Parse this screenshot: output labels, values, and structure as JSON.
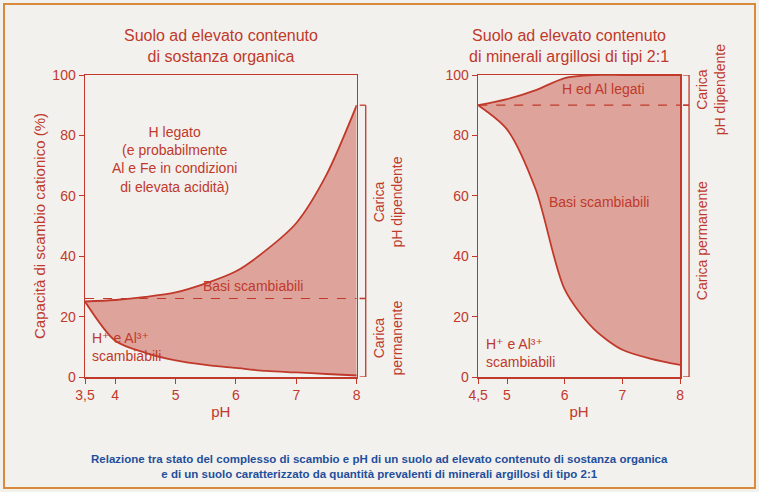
{
  "chart_data": [
    {
      "type": "area",
      "title": [
        "Suolo ad elevato contenuto",
        "di sostanza organica"
      ],
      "xlabel": "pH",
      "ylabel": "Capacità di scambio cationico (%)",
      "x": [
        3.5,
        4,
        4.5,
        5,
        5.5,
        6,
        6.5,
        7,
        7.5,
        8
      ],
      "xlim": [
        3.5,
        8
      ],
      "xticks": [
        {
          "value": 3.5,
          "label": "3,5"
        },
        4,
        5,
        6,
        7,
        8
      ],
      "ylim": [
        0,
        100
      ],
      "yticks": [
        0,
        20,
        40,
        60,
        80,
        100
      ],
      "grid": false,
      "series": [
        {
          "type": "line",
          "color": "#c0392b",
          "line_style": "solid",
          "values": [
            25,
            12,
            8,
            5.5,
            4,
            3,
            2,
            1.5,
            1,
            0.5
          ]
        },
        {
          "type": "area",
          "color": "#c0392b",
          "line_style": "solid",
          "values": [
            25,
            25.5,
            26.5,
            28,
            31,
            35,
            42,
            51,
            67,
            90
          ]
        },
        {
          "type": "line",
          "color": "#c0392b",
          "line_style": "dashed",
          "values": [
            26,
            26,
            26,
            26,
            26,
            26,
            26,
            26,
            26,
            26
          ]
        }
      ],
      "annotations": [
        {
          "text": [
            "H legato",
            "(e probabilmente",
            "Al e Fe in condizioni",
            "di elevata acidità)"
          ]
        },
        {
          "text": [
            "Basi scambiabili"
          ]
        },
        {
          "text": [
            "H⁺ e Al³⁺",
            "scambiabili"
          ]
        }
      ],
      "brackets": [
        {
          "text": [
            "Carica",
            "pH dipendente"
          ],
          "from": 26,
          "to": 90
        },
        {
          "text": [
            "Carica",
            "permanente"
          ],
          "from": 0,
          "to": 26
        }
      ]
    },
    {
      "type": "area",
      "title": [
        "Suolo ad elevato contenuto",
        "di minerali argillosi di tipi 2:1"
      ],
      "xlabel": "pH",
      "x": [
        4.5,
        5,
        5.5,
        6,
        6.5,
        7,
        7.5,
        8
      ],
      "xlim": [
        4.5,
        8
      ],
      "xticks": [
        {
          "value": 4.5,
          "label": "4,5"
        },
        5,
        6,
        7,
        8
      ],
      "ylim": [
        0,
        100
      ],
      "yticks": [
        0,
        20,
        40,
        60,
        80,
        100
      ],
      "grid": false,
      "series": [
        {
          "type": "line",
          "color": "#c0392b",
          "line_style": "solid",
          "values": [
            90,
            82,
            62,
            29,
            16,
            9,
            6,
            4
          ]
        },
        {
          "type": "area",
          "color": "#c0392b",
          "line_style": "solid",
          "values": [
            90,
            92,
            95,
            99,
            100,
            100,
            100,
            100
          ]
        },
        {
          "type": "line",
          "color": "#c0392b",
          "line_style": "dashed",
          "values": [
            90,
            90,
            90,
            90,
            90,
            90,
            90,
            90
          ]
        }
      ],
      "annotations": [
        {
          "text": [
            "H ed Al legati"
          ]
        },
        {
          "text": [
            "Basi scambiabili"
          ]
        },
        {
          "text": [
            "H⁺ e Al³⁺",
            "scambiabili"
          ]
        }
      ],
      "brackets": [
        {
          "text": [
            "Carica",
            "pH dipendente"
          ],
          "from": 90,
          "to": 100
        },
        {
          "text": [
            "Carica permanente"
          ],
          "from": 0,
          "to": 90
        }
      ]
    }
  ],
  "caption": [
    "Relazione tra stato del complesso di scambio e pH di un suolo ad elevato contenuto di sostanza organica",
    "e di un suolo caratterizzato da quantità prevalenti di minerali argillosi di tipo 2:1"
  ]
}
